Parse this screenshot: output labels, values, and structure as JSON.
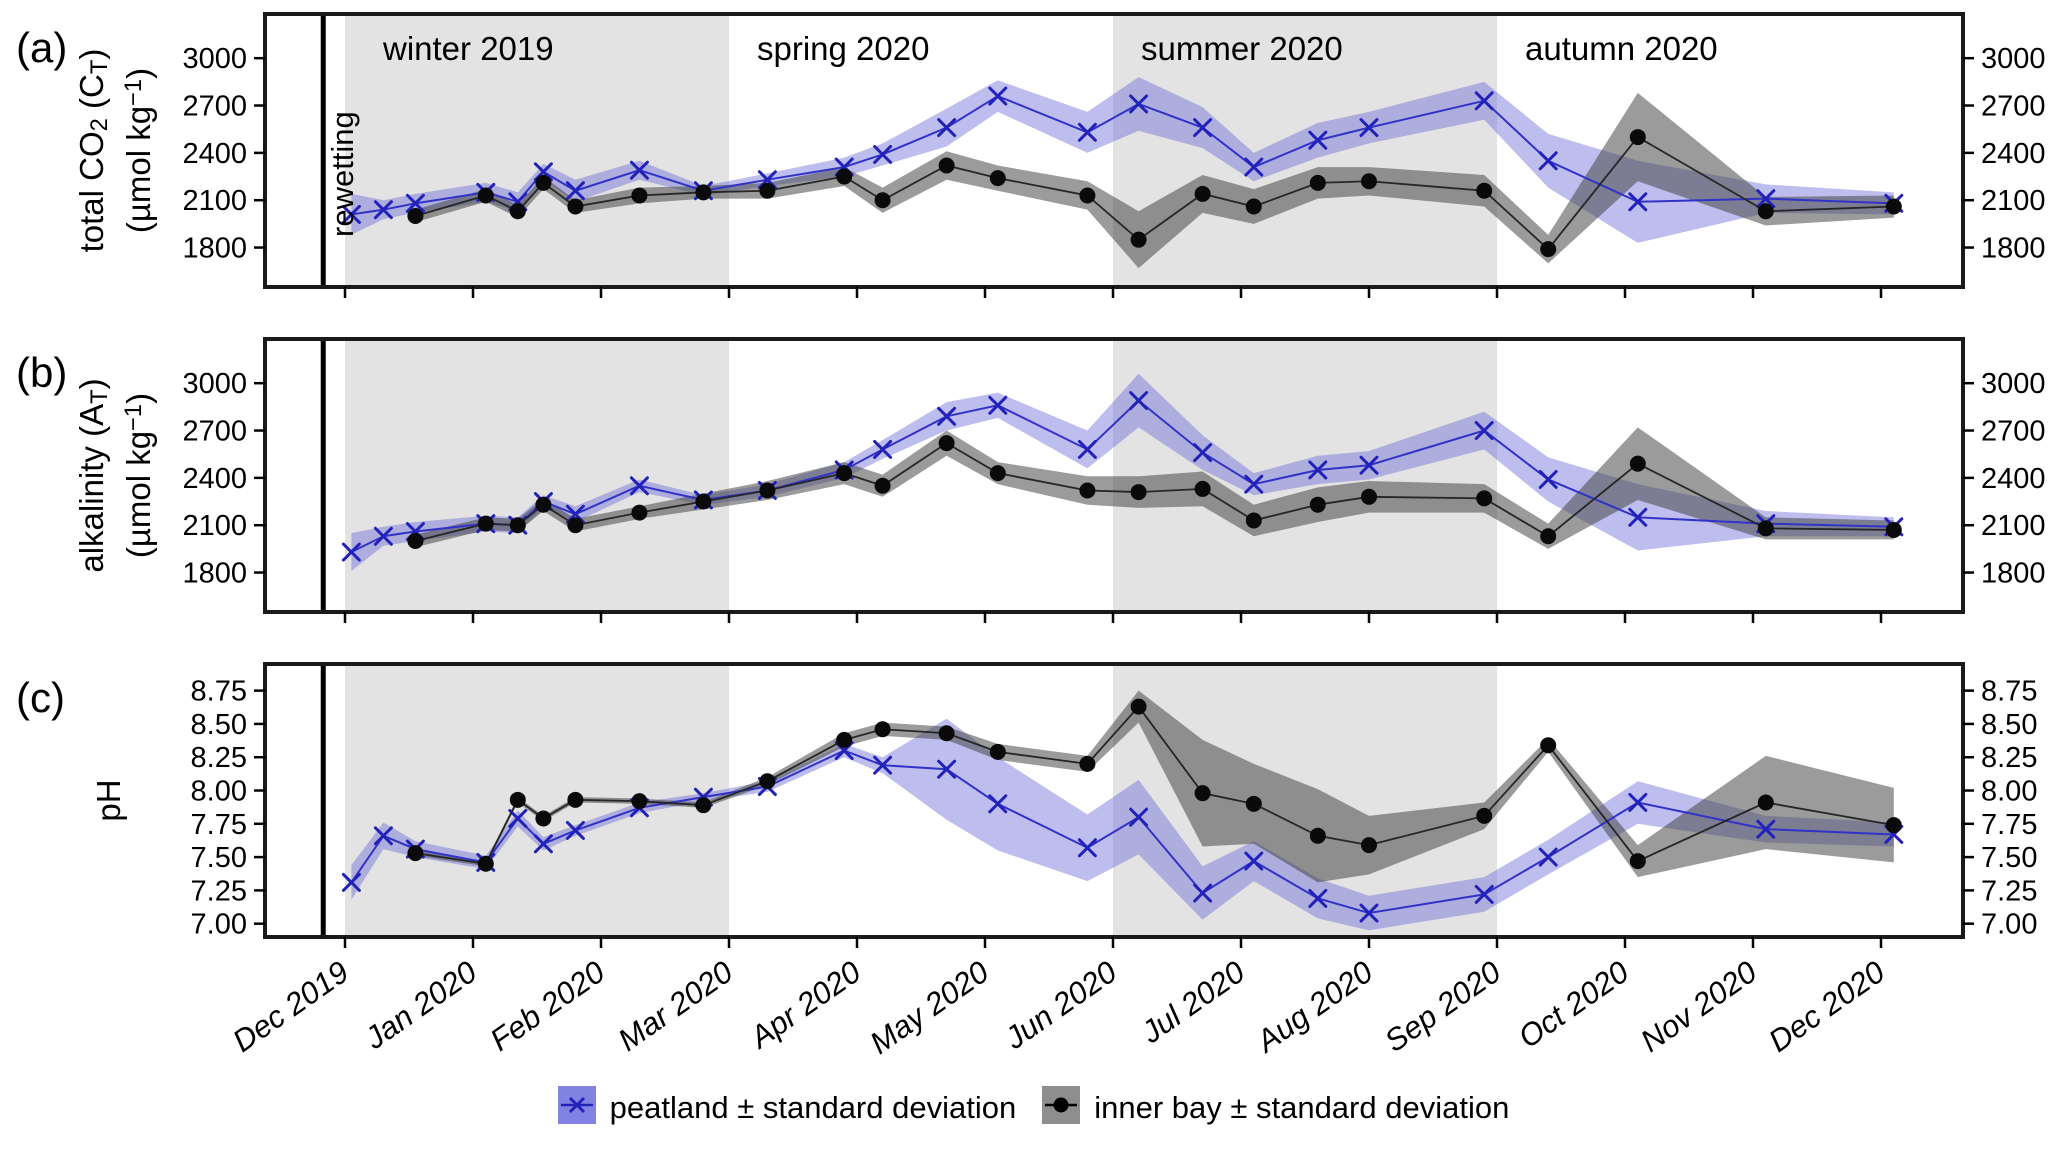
{
  "figure": {
    "panel_labels": [
      "(a)",
      "(b)",
      "(c)"
    ],
    "rewetting_label": "rewetting",
    "legend": [
      {
        "series": "peatland",
        "label": "peatland ± standard deviation",
        "swatch_fill": "#8282e2",
        "marker": "x",
        "marker_color": "#2222bb"
      },
      {
        "series": "inner bay",
        "label": "inner bay ± standard deviation",
        "swatch_fill": "#8e8e8e",
        "marker": "dot",
        "marker_color": "#000000"
      }
    ],
    "colors": {
      "peatland_line": "#3232c8",
      "peatland_marker": "#2222bb",
      "peatland_band": "rgba(100,100,215,0.42)",
      "inner_bay_line": "#262626",
      "inner_bay_marker": "#0a0a0a",
      "inner_bay_band": "rgba(64,64,64,0.52)",
      "season_shade": "#e3e3e3",
      "panel_border": "#1a1a1a",
      "text": "#000000"
    }
  },
  "x_axis": {
    "tick_labels": [
      "Dec 2019",
      "Jan 2020",
      "Feb 2020",
      "Mar 2020",
      "Apr 2020",
      "May 2020",
      "Jun 2020",
      "Jul 2020",
      "Aug 2020",
      "Sep 2020",
      "Oct 2020",
      "Nov 2020",
      "Dec 2020"
    ],
    "tick_months": [
      0,
      1,
      2,
      3,
      4,
      5,
      6,
      7,
      8,
      9,
      10,
      11,
      12
    ],
    "xlim": [
      -0.625,
      12.64
    ],
    "rewetting_x": -0.17,
    "seasons": [
      {
        "label": "winter 2019",
        "start": 0,
        "end": 3,
        "shaded": true
      },
      {
        "label": "spring 2020",
        "start": 3,
        "end": 6,
        "shaded": false
      },
      {
        "label": "summer 2020",
        "start": 6,
        "end": 9,
        "shaded": true
      },
      {
        "label": "autumn 2020",
        "start": 9,
        "end": 12.64,
        "shaded": false
      }
    ]
  },
  "chart_data": [
    {
      "type": "line",
      "panel": "(a)",
      "ylabel_text": "total CO2 (CT) (µmol kg−1)",
      "ylabel_rich": [
        {
          "t": "total CO"
        },
        {
          "t": "2",
          "shift": "sub"
        },
        {
          "t": " (C"
        },
        {
          "t": "T",
          "shift": "sub"
        },
        {
          "t": ")"
        }
      ],
      "ylabel_units_rich": [
        {
          "t": "(µmol kg"
        },
        {
          "t": "−1",
          "shift": "sup"
        },
        {
          "t": ")"
        }
      ],
      "yticks": [
        1800,
        2100,
        2400,
        2700,
        3000
      ],
      "ytick_labels": [
        "1800",
        "2100",
        "2400",
        "2700",
        "3000"
      ],
      "ylim": [
        1550,
        3280
      ],
      "series": [
        {
          "name": "peatland",
          "x": [
            0.05,
            0.3,
            0.55,
            1.1,
            1.35,
            1.55,
            1.8,
            2.3,
            2.8,
            3.3,
            3.9,
            4.2,
            4.7,
            5.1,
            5.8,
            6.2,
            6.7,
            7.1,
            7.6,
            8.0,
            8.9,
            9.4,
            10.1,
            11.1,
            12.1
          ],
          "y": [
            2010,
            2040,
            2080,
            2150,
            2090,
            2280,
            2160,
            2290,
            2160,
            2230,
            2310,
            2390,
            2560,
            2760,
            2530,
            2710,
            2560,
            2310,
            2480,
            2560,
            2730,
            2350,
            2090,
            2110,
            2080
          ],
          "sd": [
            130,
            60,
            60,
            60,
            60,
            50,
            70,
            60,
            30,
            40,
            60,
            70,
            120,
            100,
            130,
            170,
            130,
            90,
            110,
            100,
            120,
            170,
            260,
            90,
            70
          ]
        },
        {
          "name": "inner bay",
          "x": [
            0.55,
            1.1,
            1.35,
            1.55,
            1.8,
            2.3,
            2.8,
            3.3,
            3.9,
            4.2,
            4.7,
            5.1,
            5.8,
            6.2,
            6.7,
            7.1,
            7.6,
            8.0,
            8.9,
            9.4,
            10.1,
            11.1,
            12.1
          ],
          "y": [
            2000,
            2130,
            2030,
            2210,
            2060,
            2130,
            2150,
            2160,
            2250,
            2100,
            2320,
            2240,
            2130,
            1850,
            2140,
            2060,
            2210,
            2220,
            2160,
            1790,
            2500,
            2030,
            2060
          ],
          "sd": [
            40,
            40,
            40,
            40,
            40,
            50,
            40,
            50,
            60,
            80,
            90,
            80,
            90,
            180,
            120,
            110,
            100,
            90,
            100,
            90,
            280,
            90,
            70
          ]
        }
      ]
    },
    {
      "type": "line",
      "panel": "(b)",
      "ylabel_text": "alkalinity (AT) (µmol kg−1)",
      "ylabel_rich": [
        {
          "t": "alkalinity (A"
        },
        {
          "t": "T",
          "shift": "sub"
        },
        {
          "t": ")"
        }
      ],
      "ylabel_units_rich": [
        {
          "t": "(µmol kg"
        },
        {
          "t": "−1",
          "shift": "sup"
        },
        {
          "t": ")"
        }
      ],
      "yticks": [
        1800,
        2100,
        2400,
        2700,
        3000
      ],
      "ytick_labels": [
        "1800",
        "2100",
        "2400",
        "2700",
        "3000"
      ],
      "ylim": [
        1550,
        3280
      ],
      "series": [
        {
          "name": "peatland",
          "x": [
            0.05,
            0.3,
            0.55,
            1.1,
            1.35,
            1.55,
            1.8,
            2.3,
            2.8,
            3.3,
            3.9,
            4.2,
            4.7,
            5.1,
            5.8,
            6.2,
            6.7,
            7.1,
            7.6,
            8.0,
            8.9,
            9.4,
            10.1,
            11.1,
            12.1
          ],
          "y": [
            1930,
            2030,
            2060,
            2110,
            2100,
            2250,
            2170,
            2350,
            2260,
            2320,
            2450,
            2580,
            2790,
            2860,
            2580,
            2890,
            2560,
            2360,
            2450,
            2480,
            2700,
            2390,
            2150,
            2110,
            2090
          ],
          "sd": [
            120,
            60,
            60,
            50,
            50,
            40,
            50,
            40,
            30,
            40,
            50,
            60,
            90,
            80,
            120,
            170,
            110,
            70,
            90,
            90,
            120,
            140,
            210,
            80,
            60
          ]
        },
        {
          "name": "inner bay",
          "x": [
            0.55,
            1.1,
            1.35,
            1.55,
            1.8,
            2.3,
            2.8,
            3.3,
            3.9,
            4.2,
            4.7,
            5.1,
            5.8,
            6.2,
            6.7,
            7.1,
            7.6,
            8.0,
            8.9,
            9.4,
            10.1,
            11.1,
            12.1
          ],
          "y": [
            2000,
            2110,
            2100,
            2230,
            2100,
            2180,
            2250,
            2320,
            2430,
            2350,
            2620,
            2430,
            2320,
            2310,
            2330,
            2130,
            2230,
            2280,
            2270,
            2030,
            2490,
            2080,
            2070
          ],
          "sd": [
            40,
            40,
            40,
            40,
            40,
            40,
            50,
            60,
            70,
            70,
            80,
            70,
            90,
            100,
            110,
            100,
            110,
            100,
            90,
            80,
            230,
            70,
            60
          ]
        }
      ]
    },
    {
      "type": "line",
      "panel": "(c)",
      "ylabel_text": "pH",
      "ylabel_rich": [
        {
          "t": "pH"
        }
      ],
      "ylabel_units_rich": [],
      "yticks": [
        7.0,
        7.25,
        7.5,
        7.75,
        8.0,
        8.25,
        8.5,
        8.75
      ],
      "ytick_labels": [
        "7.00",
        "7.25",
        "7.50",
        "7.75",
        "8.00",
        "8.25",
        "8.50",
        "8.75"
      ],
      "ylim": [
        6.9,
        8.95
      ],
      "series": [
        {
          "name": "peatland",
          "x": [
            0.05,
            0.3,
            0.55,
            1.1,
            1.35,
            1.55,
            1.8,
            2.3,
            2.8,
            3.3,
            3.9,
            4.2,
            4.7,
            5.1,
            5.8,
            6.2,
            6.7,
            7.1,
            7.6,
            8.0,
            8.9,
            9.4,
            10.1,
            11.1,
            12.1
          ],
          "y": [
            7.31,
            7.66,
            7.56,
            7.46,
            7.79,
            7.6,
            7.7,
            7.87,
            7.95,
            8.03,
            8.3,
            8.19,
            8.16,
            7.9,
            7.57,
            7.8,
            7.23,
            7.47,
            7.19,
            7.08,
            7.22,
            7.5,
            7.91,
            7.71,
            7.67
          ],
          "sd": [
            0.13,
            0.1,
            0.06,
            0.05,
            0.06,
            0.05,
            0.04,
            0.04,
            0.03,
            0.04,
            0.05,
            0.06,
            0.38,
            0.35,
            0.25,
            0.28,
            0.2,
            0.15,
            0.15,
            0.13,
            0.13,
            0.13,
            0.16,
            0.1,
            0.09
          ]
        },
        {
          "name": "inner bay",
          "x": [
            0.55,
            1.1,
            1.35,
            1.55,
            1.8,
            2.3,
            2.8,
            3.3,
            3.9,
            4.2,
            4.7,
            5.1,
            5.8,
            6.2,
            6.7,
            7.1,
            7.6,
            8.0,
            8.9,
            9.4,
            10.1,
            11.1,
            12.1
          ],
          "y": [
            7.53,
            7.45,
            7.93,
            7.79,
            7.93,
            7.92,
            7.89,
            8.07,
            8.38,
            8.46,
            8.43,
            8.29,
            8.2,
            8.63,
            7.98,
            7.9,
            7.66,
            7.59,
            7.81,
            8.34,
            7.47,
            7.91,
            7.74
          ],
          "sd": [
            0.02,
            0.02,
            0.02,
            0.02,
            0.02,
            0.02,
            0.02,
            0.03,
            0.05,
            0.05,
            0.05,
            0.06,
            0.06,
            0.12,
            0.4,
            0.3,
            0.35,
            0.22,
            0.1,
            0.05,
            0.12,
            0.35,
            0.28
          ]
        }
      ]
    }
  ]
}
